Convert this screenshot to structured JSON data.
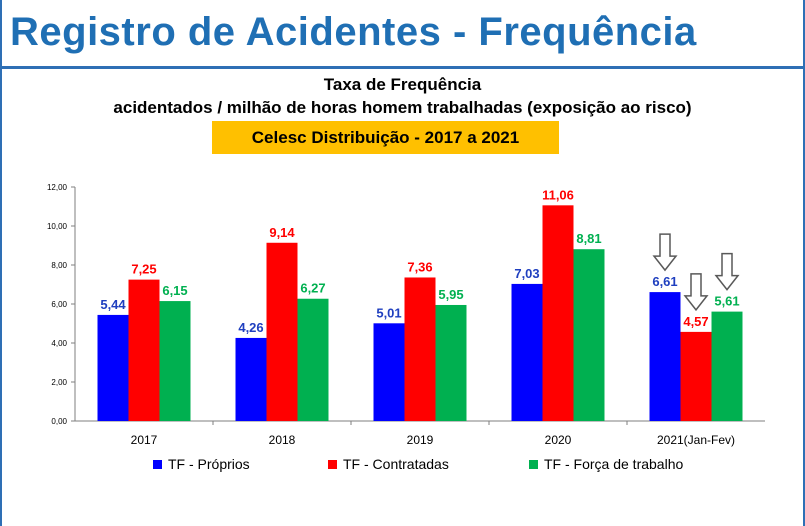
{
  "header": {
    "title": "Registro de Acidentes - Frequência"
  },
  "chart_data": {
    "type": "bar",
    "title": "Taxa de Frequência",
    "subtitle": "acidentados / milhão de horas homem trabalhadas (exposição ao risco)",
    "badge": "Celesc Distribuição  -  2017 a 2021",
    "categories": [
      "2017",
      "2018",
      "2019",
      "2020",
      "2021(Jan-Fev)"
    ],
    "series": [
      {
        "name": "TF - Próprios",
        "color": "#0000ff",
        "label_color": "#1f3fbf",
        "values": [
          5.44,
          4.26,
          5.01,
          7.03,
          6.61
        ],
        "labels": [
          "5,44",
          "4,26",
          "5,01",
          "7,03",
          "6,61"
        ]
      },
      {
        "name": "TF - Contratadas",
        "color": "#ff0000",
        "label_color": "#ff0000",
        "values": [
          7.25,
          9.14,
          7.36,
          11.06,
          4.57
        ],
        "labels": [
          "7,25",
          "9,14",
          "7,36",
          "11,06",
          "4,57"
        ]
      },
      {
        "name": "TF - Força de trabalho",
        "color": "#00b050",
        "label_color": "#00b050",
        "values": [
          6.15,
          6.27,
          5.95,
          8.81,
          5.61
        ],
        "labels": [
          "6,15",
          "6,27",
          "5,95",
          "8,81",
          "5,61"
        ]
      }
    ],
    "ylim": [
      0,
      12
    ],
    "yticks": [
      "0,00",
      "2,00",
      "4,00",
      "6,00",
      "8,00",
      "10,00",
      "12,00"
    ],
    "annotations": [
      "down-arrow-icon",
      "down-arrow-icon",
      "down-arrow-icon"
    ],
    "legend_position": "bottom",
    "grid": false
  }
}
